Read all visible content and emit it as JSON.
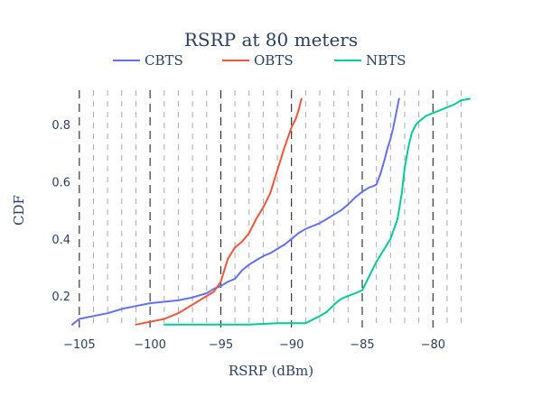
{
  "chart_data": {
    "type": "line",
    "title": "RSRP at 80 meters",
    "xlabel": "RSRP (dBm)",
    "ylabel": "CDF",
    "xlim": [
      -105.5,
      -77.4
    ],
    "ylim": [
      0.09,
      0.92
    ],
    "x_ticks": [
      -105,
      -100,
      -95,
      -90,
      -85,
      -80
    ],
    "x_tick_labels": [
      "−105",
      "−100",
      "−95",
      "−90",
      "−85",
      "−80"
    ],
    "y_ticks": [
      0.2,
      0.4,
      0.6,
      0.8
    ],
    "y_tick_labels": [
      "0.2",
      "0.4",
      "0.6",
      "0.8"
    ],
    "grid": "vertical dashed lines every 1 dBm, darker at multiples of 5",
    "legend": "top",
    "series": [
      {
        "name": "CBTS",
        "color": "#636efa",
        "x": [
          -105.5,
          -105.0,
          -104.5,
          -104.0,
          -103.5,
          -103.0,
          -102.0,
          -101.0,
          -100.0,
          -99.0,
          -98.0,
          -97.0,
          -96.0,
          -95.5,
          -95.0,
          -94.5,
          -94.0,
          -93.5,
          -93.0,
          -92.5,
          -92.0,
          -91.5,
          -91.0,
          -90.5,
          -90.0,
          -89.5,
          -89.0,
          -88.5,
          -88.0,
          -87.5,
          -87.0,
          -86.5,
          -86.0,
          -85.5,
          -85.0,
          -84.5,
          -84.2,
          -84.0,
          -83.7,
          -83.4,
          -83.2,
          -83.0,
          -82.8,
          -82.6,
          -82.4
        ],
        "y": [
          0.1,
          0.12,
          0.125,
          0.13,
          0.135,
          0.14,
          0.155,
          0.165,
          0.175,
          0.18,
          0.185,
          0.195,
          0.21,
          0.225,
          0.235,
          0.25,
          0.26,
          0.29,
          0.31,
          0.325,
          0.34,
          0.35,
          0.365,
          0.38,
          0.4,
          0.42,
          0.435,
          0.445,
          0.455,
          0.47,
          0.485,
          0.5,
          0.52,
          0.545,
          0.565,
          0.58,
          0.585,
          0.59,
          0.63,
          0.68,
          0.72,
          0.75,
          0.79,
          0.84,
          0.89
        ]
      },
      {
        "name": "OBTS",
        "color": "#ef553b",
        "x": [
          -101.0,
          -100.0,
          -99.0,
          -98.5,
          -98.0,
          -97.5,
          -97.0,
          -96.5,
          -96.0,
          -95.5,
          -95.0,
          -94.5,
          -94.0,
          -93.5,
          -93.0,
          -92.5,
          -92.0,
          -91.5,
          -91.0,
          -90.5,
          -90.0,
          -89.7,
          -89.5,
          -89.3
        ],
        "y": [
          0.1,
          0.11,
          0.12,
          0.13,
          0.14,
          0.155,
          0.17,
          0.185,
          0.2,
          0.215,
          0.25,
          0.33,
          0.37,
          0.39,
          0.42,
          0.47,
          0.51,
          0.56,
          0.64,
          0.72,
          0.79,
          0.82,
          0.85,
          0.89
        ]
      },
      {
        "name": "NBTS",
        "color": "#00cc96",
        "x": [
          -99.0,
          -97.0,
          -95.0,
          -93.0,
          -91.0,
          -89.0,
          -88.0,
          -87.5,
          -87.0,
          -86.5,
          -86.0,
          -85.5,
          -85.0,
          -84.5,
          -84.0,
          -83.5,
          -83.0,
          -82.5,
          -82.2,
          -82.0,
          -81.7,
          -81.5,
          -81.2,
          -81.0,
          -80.5,
          -80.0,
          -79.5,
          -79.0,
          -78.5,
          -78.0,
          -77.4
        ],
        "y": [
          0.1,
          0.1,
          0.1,
          0.1,
          0.105,
          0.105,
          0.13,
          0.145,
          0.17,
          0.19,
          0.2,
          0.21,
          0.22,
          0.27,
          0.32,
          0.36,
          0.4,
          0.47,
          0.56,
          0.65,
          0.73,
          0.77,
          0.8,
          0.81,
          0.83,
          0.84,
          0.85,
          0.86,
          0.87,
          0.885,
          0.89
        ]
      }
    ]
  }
}
